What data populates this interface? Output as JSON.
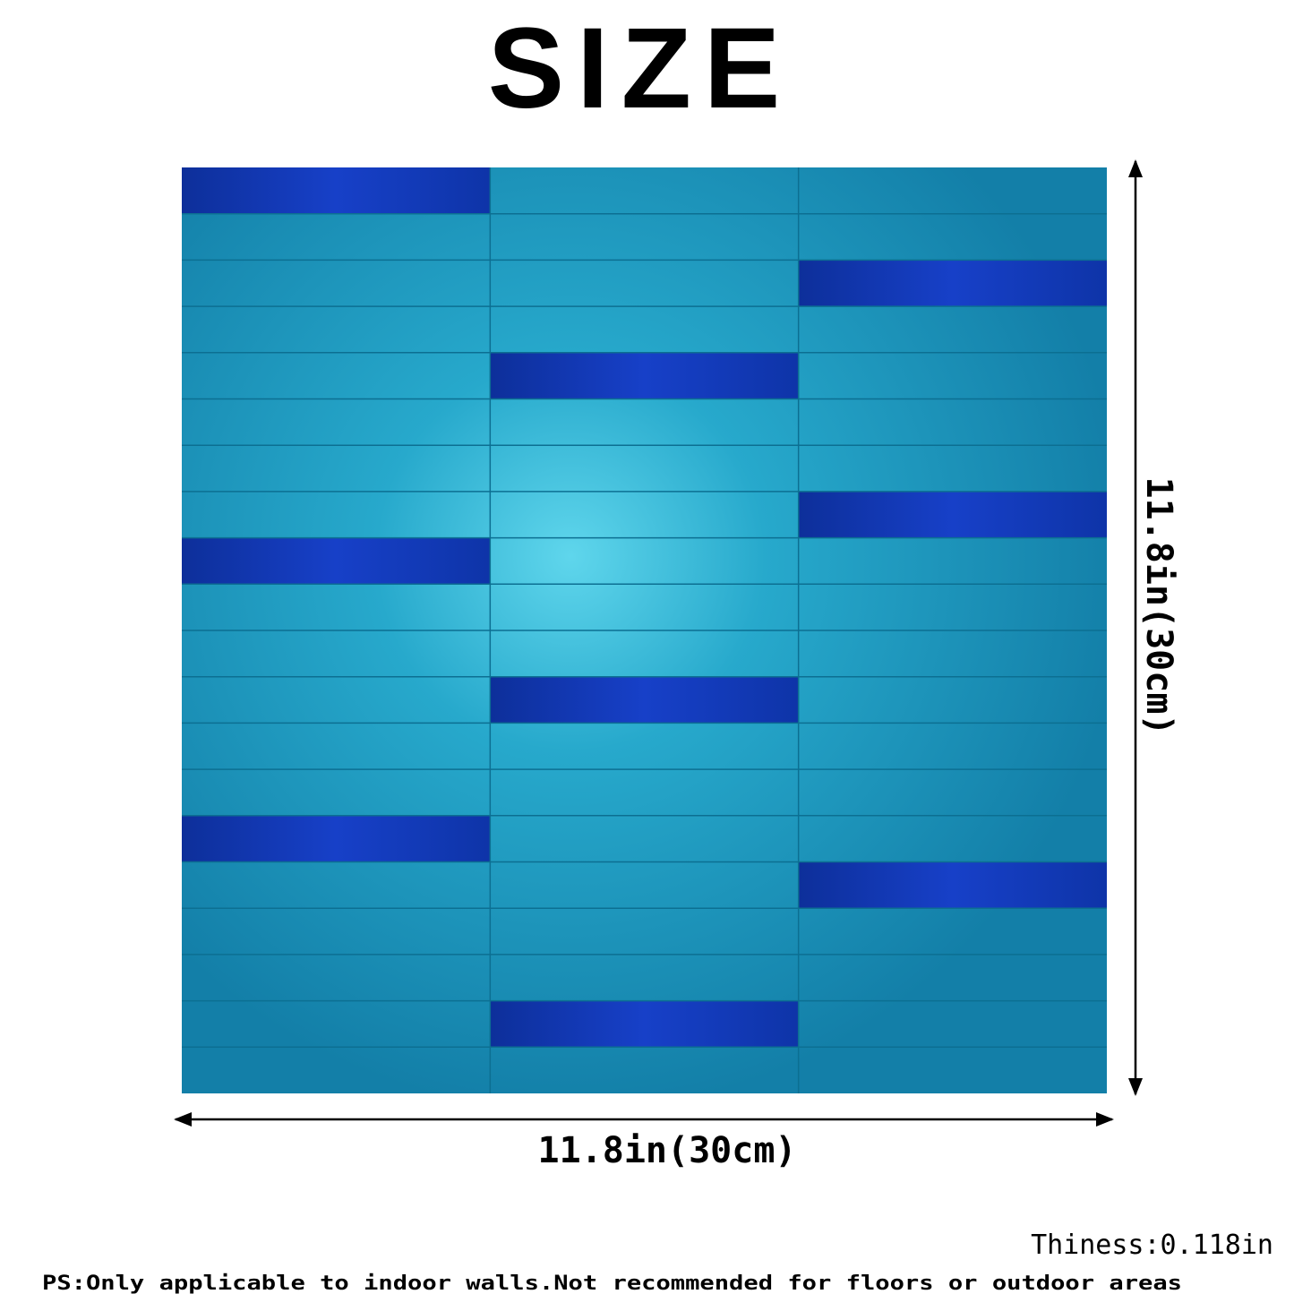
{
  "header": {
    "title": "SIZE"
  },
  "dimensions": {
    "height": "11.8in(30cm)",
    "width": "11.8in(30cm)",
    "thickness": "Thiness:0.118in"
  },
  "footer": {
    "note": "PS:Only applicable to indoor walls.Not recommended for floors or outdoor areas"
  }
}
